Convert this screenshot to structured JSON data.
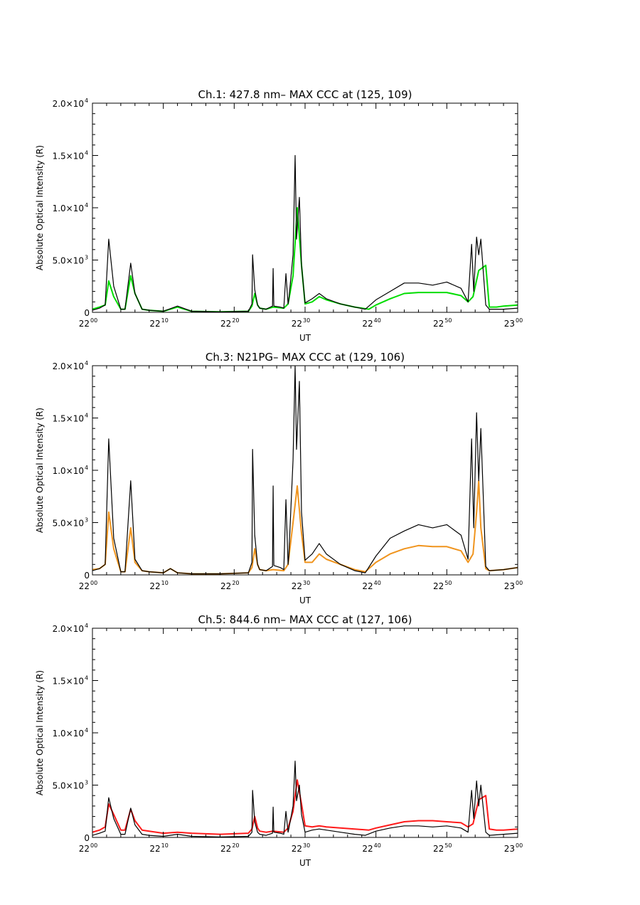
{
  "figure": {
    "background": "#ffffff"
  },
  "x_tick_hours": [
    "22",
    "22",
    "22",
    "22",
    "22",
    "22",
    "23"
  ],
  "x_tick_minutes": [
    "00",
    "10",
    "20",
    "30",
    "40",
    "50",
    "00"
  ],
  "x_ticks_num": [
    0,
    10,
    20,
    30,
    40,
    50,
    60
  ],
  "y_tick_labels": [
    "0",
    "5.0×10",
    "1.0×10",
    "1.5×10",
    "2.0×10"
  ],
  "y_tick_exponents": [
    "",
    "3",
    "4",
    "4",
    "4"
  ],
  "y_ticks_num": [
    0,
    5000,
    10000,
    15000,
    20000
  ],
  "chart_data": [
    {
      "type": "line",
      "title": "Ch.1: 427.8 nm– MAX CCC at (125, 109)",
      "xlabel": "UT",
      "ylabel": "Absolute Optical Intensity (R)",
      "xlim": [
        "22:00",
        "23:00"
      ],
      "ylim": [
        0,
        20000
      ],
      "series": [
        {
          "color": "#00dd00",
          "x": [
            0,
            1,
            1.8,
            2.3,
            3,
            4,
            4.6,
            5.4,
            6,
            7,
            8,
            10,
            12,
            14,
            18,
            22,
            22.5,
            22.9,
            23.3,
            23.6,
            24.5,
            25.5,
            27,
            27.6,
            28.3,
            28.9,
            29.5,
            30,
            31,
            32,
            33,
            35,
            37,
            39,
            40,
            42,
            44,
            46,
            48,
            50,
            52,
            53,
            53.7,
            54.5,
            55.5,
            56,
            57,
            58,
            60
          ],
          "y": [
            300,
            500,
            700,
            3000,
            1500,
            300,
            300,
            3500,
            1800,
            300,
            200,
            100,
            500,
            100,
            50,
            100,
            600,
            1800,
            700,
            400,
            300,
            500,
            400,
            800,
            3500,
            10000,
            4500,
            800,
            1000,
            1500,
            1200,
            800,
            500,
            300,
            700,
            1300,
            1800,
            1900,
            1900,
            1900,
            1600,
            1000,
            1500,
            4000,
            4500,
            500,
            500,
            600,
            700
          ]
        },
        {
          "color": "#000000",
          "x": [
            0,
            1,
            1.8,
            2.3,
            3,
            4,
            4.6,
            5.4,
            6,
            7,
            8,
            10,
            12,
            14,
            18,
            22,
            22.5,
            22.6,
            22.9,
            23.3,
            23.6,
            24.5,
            25.4,
            25.5,
            25.6,
            26.5,
            27,
            27.3,
            27.6,
            27.7,
            28.3,
            28.6,
            28.8,
            29.2,
            29.5,
            30,
            31,
            32,
            33,
            35,
            37,
            38.5,
            40,
            42,
            44,
            46,
            48,
            50,
            52,
            53,
            53.5,
            53.8,
            54.2,
            54.5,
            54.8,
            55.5,
            56,
            58,
            60
          ],
          "y": [
            200,
            400,
            700,
            7000,
            2500,
            300,
            300,
            4700,
            1800,
            300,
            200,
            100,
            600,
            100,
            50,
            100,
            800,
            5500,
            2200,
            700,
            400,
            300,
            600,
            4200,
            600,
            500,
            400,
            3700,
            800,
            1200,
            5500,
            15000,
            7000,
            11000,
            4500,
            900,
            1300,
            1800,
            1300,
            800,
            500,
            300,
            1200,
            2000,
            2800,
            2800,
            2600,
            2900,
            2300,
            1000,
            6500,
            2000,
            7200,
            5500,
            7000,
            700,
            300,
            300,
            400
          ]
        }
      ]
    },
    {
      "type": "line",
      "title": "Ch.3: N21PG– MAX CCC at (129, 106)",
      "xlabel": "UT",
      "ylabel": "Absolute Optical Intensity (R)",
      "xlim": [
        "22:00",
        "23:00"
      ],
      "ylim": [
        0,
        20000
      ],
      "series": [
        {
          "color": "#f0941d",
          "x": [
            0,
            1,
            1.8,
            2.3,
            3,
            4,
            4.6,
            5.4,
            6,
            7,
            8,
            10,
            11,
            12,
            14,
            18,
            22,
            22.5,
            22.9,
            23.3,
            23.6,
            24.5,
            25.5,
            27,
            27.6,
            28.3,
            28.9,
            29.5,
            30,
            31,
            32,
            33,
            35,
            37,
            38.5,
            40,
            42,
            44,
            46,
            48,
            50,
            52,
            53,
            53.7,
            54.2,
            54.5,
            54.8,
            55.5,
            56,
            58,
            60
          ],
          "y": [
            500,
            600,
            1000,
            6000,
            2500,
            300,
            300,
            4500,
            1200,
            400,
            300,
            200,
            600,
            200,
            100,
            100,
            200,
            700,
            2500,
            1000,
            500,
            400,
            500,
            400,
            1000,
            5000,
            8500,
            4000,
            1200,
            1200,
            2000,
            1500,
            1000,
            500,
            300,
            1200,
            2000,
            2500,
            2800,
            2700,
            2700,
            2300,
            1200,
            2000,
            6000,
            9000,
            4500,
            600,
            400,
            500,
            700
          ]
        },
        {
          "color": "#000000",
          "x": [
            0,
            1,
            1.8,
            2.3,
            3,
            4,
            4.6,
            5.4,
            6,
            7,
            8,
            10,
            11,
            12,
            14,
            18,
            22,
            22.5,
            22.6,
            22.9,
            23.3,
            23.6,
            24.5,
            25.4,
            25.5,
            25.6,
            26.5,
            27,
            27.3,
            27.6,
            27.7,
            28.3,
            28.6,
            28.8,
            29.2,
            29.5,
            30,
            31,
            32,
            33,
            35,
            37,
            38.5,
            40,
            42,
            44,
            46,
            48,
            50,
            52,
            53,
            53.5,
            53.8,
            54.2,
            54.5,
            54.8,
            55.5,
            56,
            58,
            60
          ],
          "y": [
            400,
            600,
            1000,
            13000,
            3500,
            300,
            300,
            9000,
            1500,
            400,
            300,
            200,
            600,
            200,
            100,
            100,
            200,
            1200,
            12000,
            3800,
            1000,
            500,
            400,
            800,
            8500,
            900,
            700,
            500,
            7200,
            1000,
            1800,
            11000,
            20000,
            12000,
            18500,
            6000,
            1400,
            2000,
            3000,
            2000,
            1000,
            400,
            200,
            1800,
            3500,
            4200,
            4800,
            4500,
            4800,
            3800,
            1500,
            13000,
            4500,
            15500,
            9000,
            14000,
            800,
            400,
            500,
            700
          ]
        }
      ]
    },
    {
      "type": "line",
      "title": "Ch.5: 844.6 nm– MAX CCC at (127, 106)",
      "xlabel": "UT",
      "ylabel": "Absolute Optical Intensity (R)",
      "xlim": [
        "22:00",
        "23:00"
      ],
      "ylim": [
        0,
        20000
      ],
      "series": [
        {
          "color": "#ff1a1a",
          "x": [
            0,
            1,
            1.8,
            2.3,
            3,
            4,
            4.6,
            5.4,
            6,
            7,
            8,
            10,
            12,
            14,
            18,
            22,
            22.5,
            22.9,
            23.3,
            23.6,
            24.5,
            25.5,
            27,
            27.6,
            28.3,
            28.9,
            29.5,
            30,
            31,
            32,
            33,
            35,
            37,
            39,
            40,
            42,
            44,
            46,
            48,
            50,
            52,
            53,
            53.7,
            54.5,
            55.5,
            56,
            57,
            58,
            60
          ],
          "y": [
            500,
            700,
            1000,
            3200,
            2200,
            700,
            700,
            2700,
            1600,
            700,
            600,
            400,
            500,
            400,
            300,
            400,
            800,
            2000,
            900,
            600,
            500,
            600,
            500,
            900,
            2500,
            5500,
            3200,
            1100,
            1000,
            1100,
            1000,
            900,
            800,
            700,
            900,
            1200,
            1500,
            1600,
            1600,
            1500,
            1400,
            1000,
            1300,
            3600,
            4000,
            800,
            700,
            700,
            800
          ]
        },
        {
          "color": "#000000",
          "x": [
            0,
            1,
            1.8,
            2.3,
            3,
            4,
            4.6,
            5.4,
            6,
            7,
            8,
            10,
            12,
            14,
            18,
            22,
            22.5,
            22.6,
            22.9,
            23.3,
            23.6,
            24.5,
            25.4,
            25.5,
            25.6,
            26.5,
            27,
            27.3,
            27.6,
            27.7,
            28.3,
            28.6,
            28.8,
            29.2,
            29.5,
            30,
            31,
            32,
            33,
            35,
            37,
            38.5,
            40,
            42,
            44,
            46,
            48,
            50,
            52,
            53,
            53.5,
            53.8,
            54.2,
            54.5,
            54.8,
            55.5,
            56,
            58,
            60
          ],
          "y": [
            200,
            400,
            600,
            3800,
            1800,
            300,
            300,
            2800,
            1200,
            300,
            200,
            100,
            300,
            100,
            50,
            100,
            500,
            4500,
            1500,
            500,
            300,
            200,
            400,
            2900,
            500,
            400,
            300,
            2500,
            500,
            800,
            3000,
            7300,
            3500,
            5000,
            2200,
            500,
            700,
            800,
            700,
            500,
            300,
            200,
            600,
            900,
            1100,
            1100,
            1000,
            1100,
            900,
            500,
            4500,
            1800,
            5400,
            3000,
            5000,
            500,
            200,
            300,
            400
          ]
        }
      ]
    }
  ]
}
